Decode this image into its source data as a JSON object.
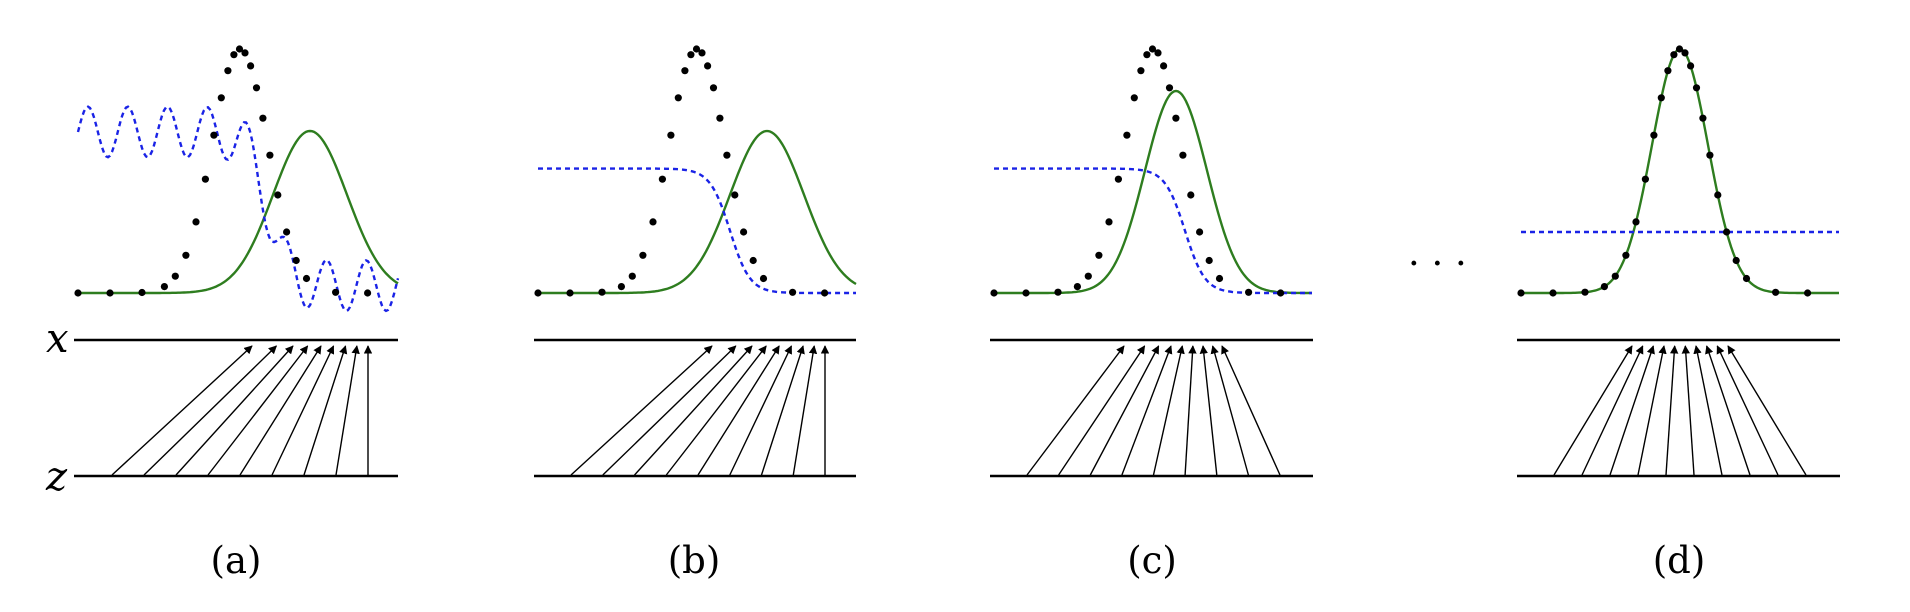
{
  "figure": {
    "axis_labels": {
      "top": "x",
      "bottom": "z"
    },
    "ellipsis": "· · ·",
    "colors": {
      "model_density": "#2e7d1f",
      "discriminator": "#1a23e6",
      "data_samples": "#000000",
      "axes": "#000000"
    },
    "panels": [
      {
        "id": "a",
        "label": "(a)"
      },
      {
        "id": "b",
        "label": "(b)"
      },
      {
        "id": "c",
        "label": "(c)"
      },
      {
        "id": "d",
        "label": "(d)"
      }
    ]
  }
}
